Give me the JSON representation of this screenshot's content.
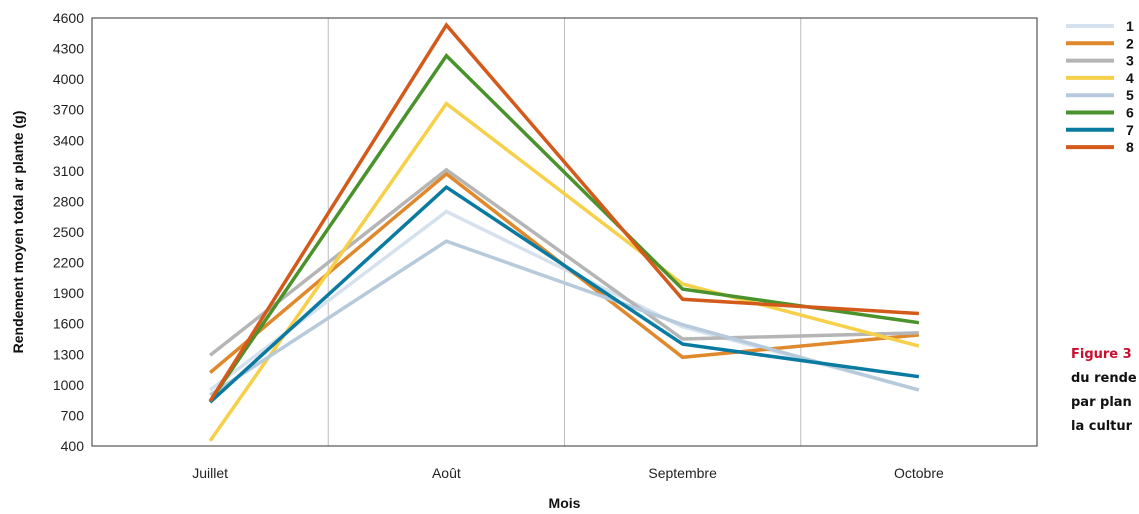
{
  "chart_data": {
    "type": "line",
    "categories": [
      "Juillet",
      "Août",
      "Septembre",
      "Octobre"
    ],
    "xlabel": "Mois",
    "ylabel": "Rendement moyen total ar plante (g)",
    "ylim": [
      400,
      4600
    ],
    "yticks": [
      400,
      700,
      1000,
      1300,
      1600,
      1900,
      2200,
      2500,
      2800,
      3100,
      3400,
      3700,
      4000,
      4300,
      4600
    ],
    "grid": "vertical",
    "legend": "right",
    "series": [
      {
        "name": "1",
        "color": "#d5e2ee",
        "values": [
          950,
          2700,
          1570,
          950
        ]
      },
      {
        "name": "2",
        "color": "#e0892c",
        "values": [
          1120,
          3070,
          1270,
          1490
        ]
      },
      {
        "name": "3",
        "color": "#b5b5b5",
        "values": [
          1290,
          3110,
          1450,
          1510
        ]
      },
      {
        "name": "4",
        "color": "#f7d04a",
        "values": [
          450,
          3760,
          1990,
          1380
        ]
      },
      {
        "name": "5",
        "color": "#b6cadc",
        "values": [
          900,
          2410,
          1590,
          950
        ]
      },
      {
        "name": "6",
        "color": "#4a922b",
        "values": [
          840,
          4230,
          1940,
          1610
        ]
      },
      {
        "name": "7",
        "color": "#0a7aa1",
        "values": [
          830,
          2940,
          1400,
          1080
        ]
      },
      {
        "name": "8",
        "color": "#d35a1a",
        "values": [
          840,
          4530,
          1840,
          1700
        ]
      }
    ]
  },
  "caption": {
    "line1_label": "Figure 3",
    "line2": "du rende",
    "line3": "par plan",
    "line4": "la cultur"
  }
}
